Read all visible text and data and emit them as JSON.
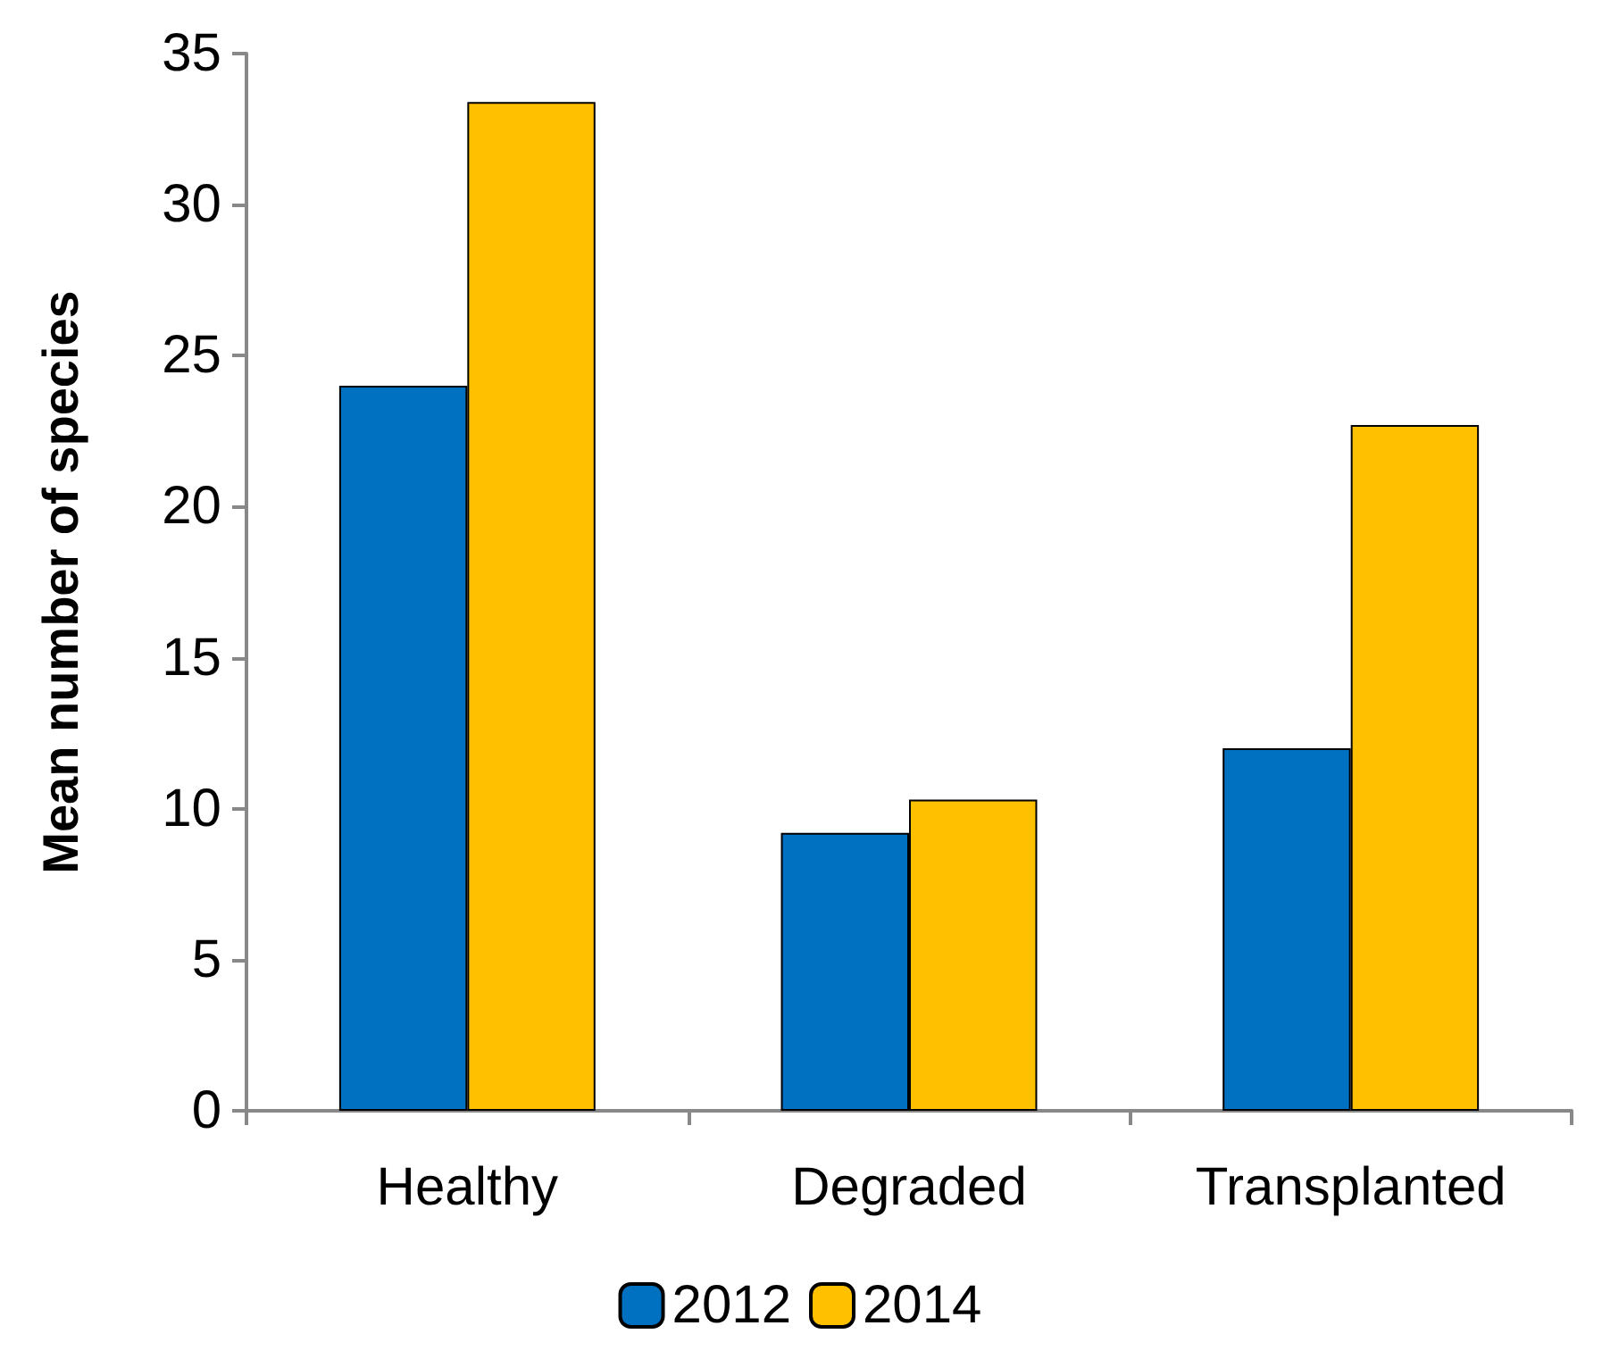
{
  "chart_data": {
    "type": "bar",
    "ylabel": "Mean number of species",
    "categories": [
      "Healthy",
      "Degraded",
      "Transplanted"
    ],
    "series": [
      {
        "name": "2012",
        "color": "#0070c0",
        "values": [
          24.0,
          9.2,
          12.0
        ]
      },
      {
        "name": "2014",
        "color": "#ffc000",
        "values": [
          33.4,
          10.3,
          22.7
        ]
      }
    ],
    "ylim": [
      0,
      35
    ],
    "yticks": [
      0,
      5,
      10,
      15,
      20,
      25,
      30,
      35
    ],
    "grid": false,
    "legend": "bottom"
  }
}
